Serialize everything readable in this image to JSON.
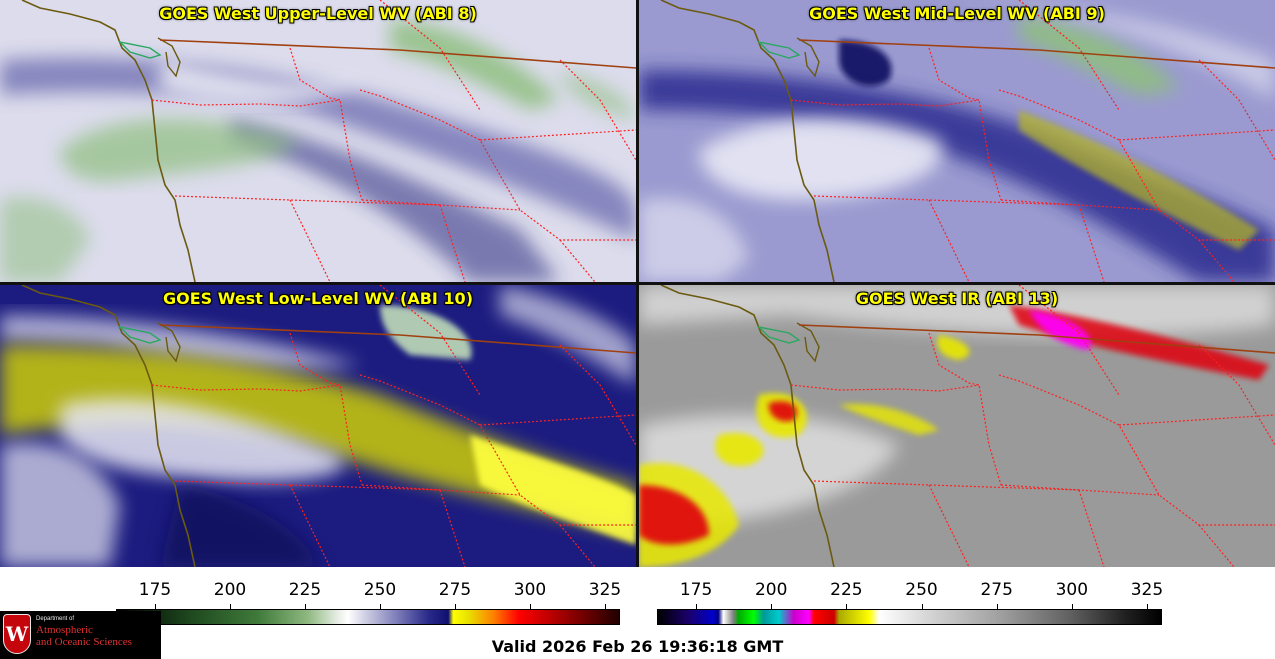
{
  "panels": [
    {
      "id": "upper",
      "title": "GOES West Upper-Level WV (ABI 8)",
      "colors": {
        "base": "#dcdcec",
        "band": "#6a6ab0",
        "dark": "#2a2a80",
        "moist": "#8fbf80",
        "white": "#f4f4fa"
      }
    },
    {
      "id": "mid",
      "title": "GOES West Mid-Level WV (ABI 9)",
      "colors": {
        "base": "#9a9ad0",
        "band": "#2a2a90",
        "dark": "#0c0c60",
        "moist": "#8fbf80",
        "white": "#eeeef8",
        "dry": "#b8b820"
      }
    },
    {
      "id": "low",
      "title": "GOES West Low-Level WV (ABI 10)",
      "colors": {
        "base": "#1c1c80",
        "band": "#3a3aa0",
        "dark": "#0a0a50",
        "moist": "#c0dcb8",
        "white": "#e8e8f4",
        "dry": "#d8d800"
      }
    },
    {
      "id": "ir",
      "title": "GOES West IR (ABI 13)",
      "colors": {
        "base": "#9a9a9a",
        "band": "#7a7a7a",
        "dark": "#5a5a5a",
        "white": "#e8e8e8",
        "yellow": "#e8e800",
        "red": "#e00010",
        "magenta": "#ff00ff"
      }
    }
  ],
  "colorbar_wv": {
    "ticks": [
      "175",
      "200",
      "225",
      "250",
      "275",
      "300",
      "325"
    ],
    "range": [
      162,
      330
    ]
  },
  "colorbar_ir": {
    "ticks": [
      "175",
      "200",
      "225",
      "250",
      "275",
      "300",
      "325"
    ],
    "range": [
      162,
      330
    ]
  },
  "logo": {
    "seal_letter": "W",
    "dept_small": "Department of",
    "line1": "Atmospheric",
    "line2": "and Oceanic Sciences"
  },
  "valid_time": "Valid 2026 Feb 26 19:36:18 GMT",
  "overlay_colors": {
    "coast": "#6b5a10",
    "state": "#ff2020",
    "border": "#a04010"
  }
}
